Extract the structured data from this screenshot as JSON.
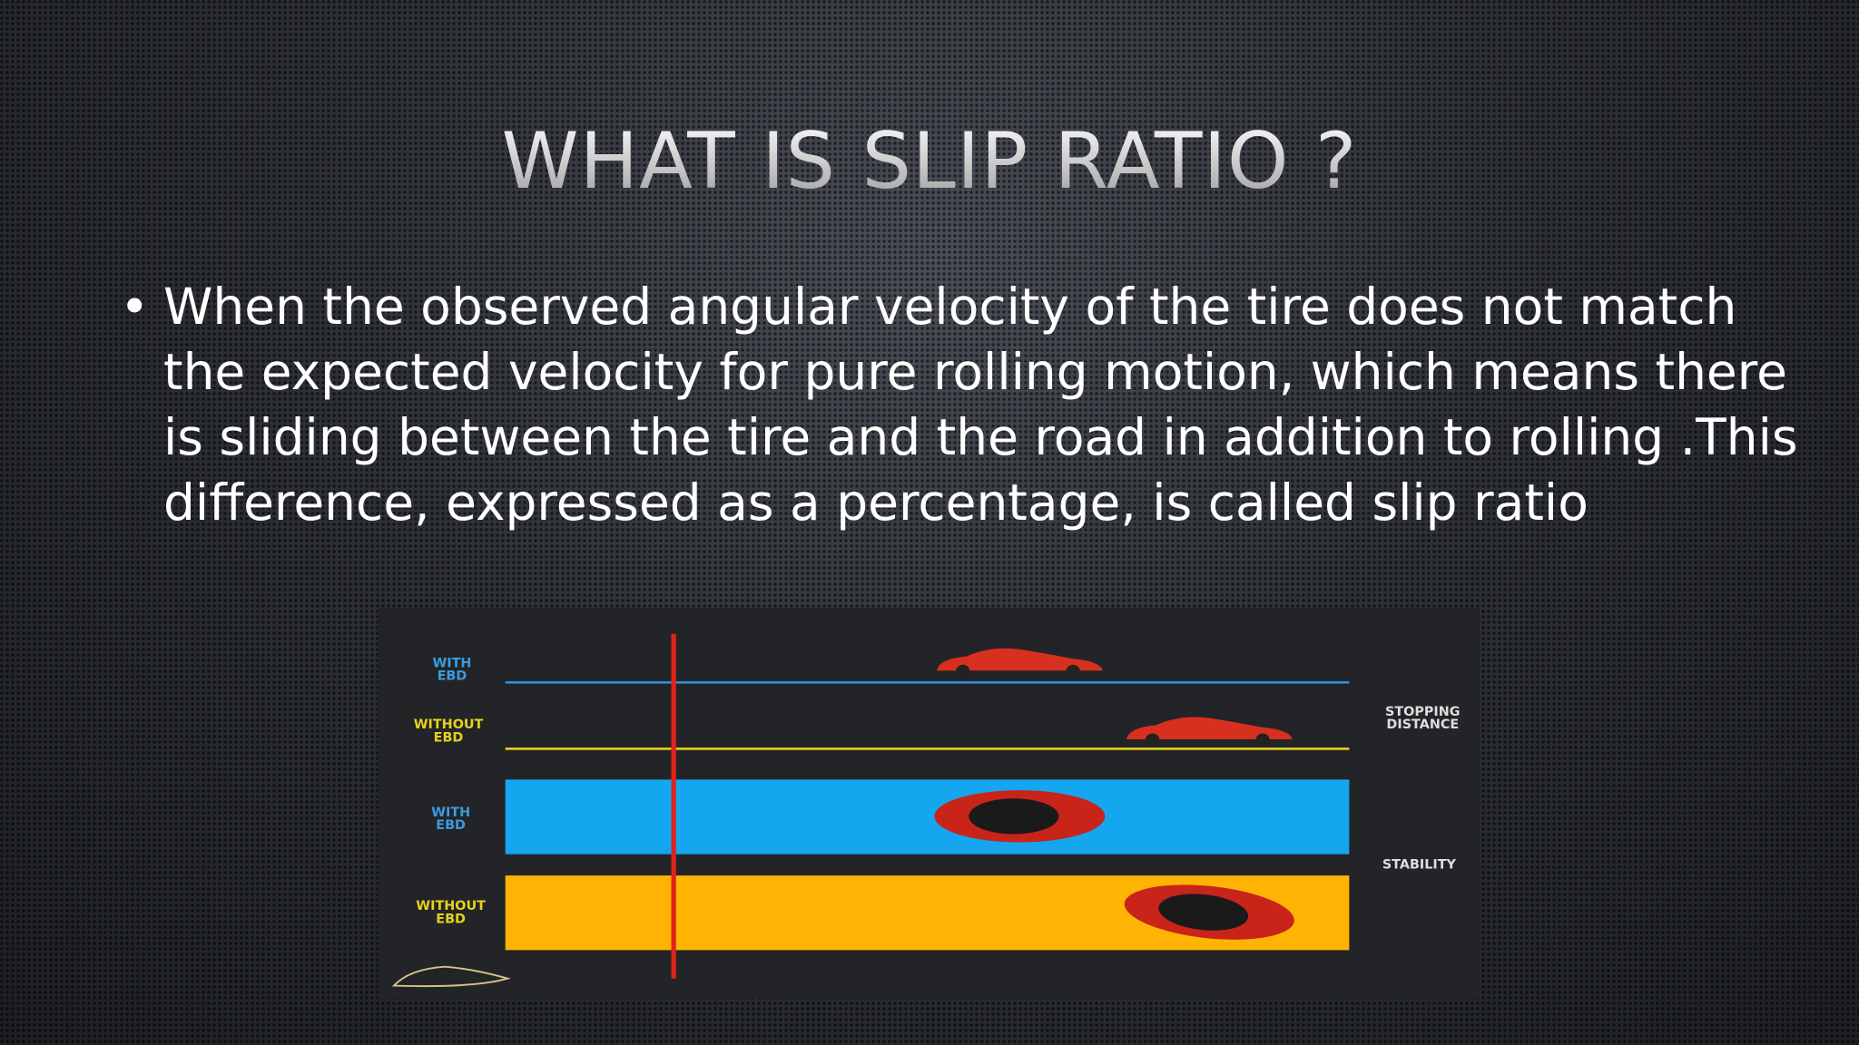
{
  "title": "WHAT IS SLIP RATIO ?",
  "bullet": {
    "lines": [
      "When the observed angular velocity of the tire does not match",
      "the expected velocity for pure rolling motion, which means there",
      "is sliding between the tire and the road in addition to rolling .This",
      "difference, expressed as a percentage, is called slip ratio"
    ]
  },
  "figure": {
    "rows": [
      {
        "label": [
          "WITH",
          "EBD"
        ]
      },
      {
        "label": [
          "WITHOUT",
          "EBD"
        ]
      },
      {
        "label": [
          "WITH",
          "EBD"
        ]
      },
      {
        "label": [
          "WITHOUT",
          "EBD"
        ]
      }
    ],
    "side_labels": [
      [
        "STOPPING",
        "DISTANCE"
      ],
      [
        "STABILITY"
      ]
    ]
  }
}
